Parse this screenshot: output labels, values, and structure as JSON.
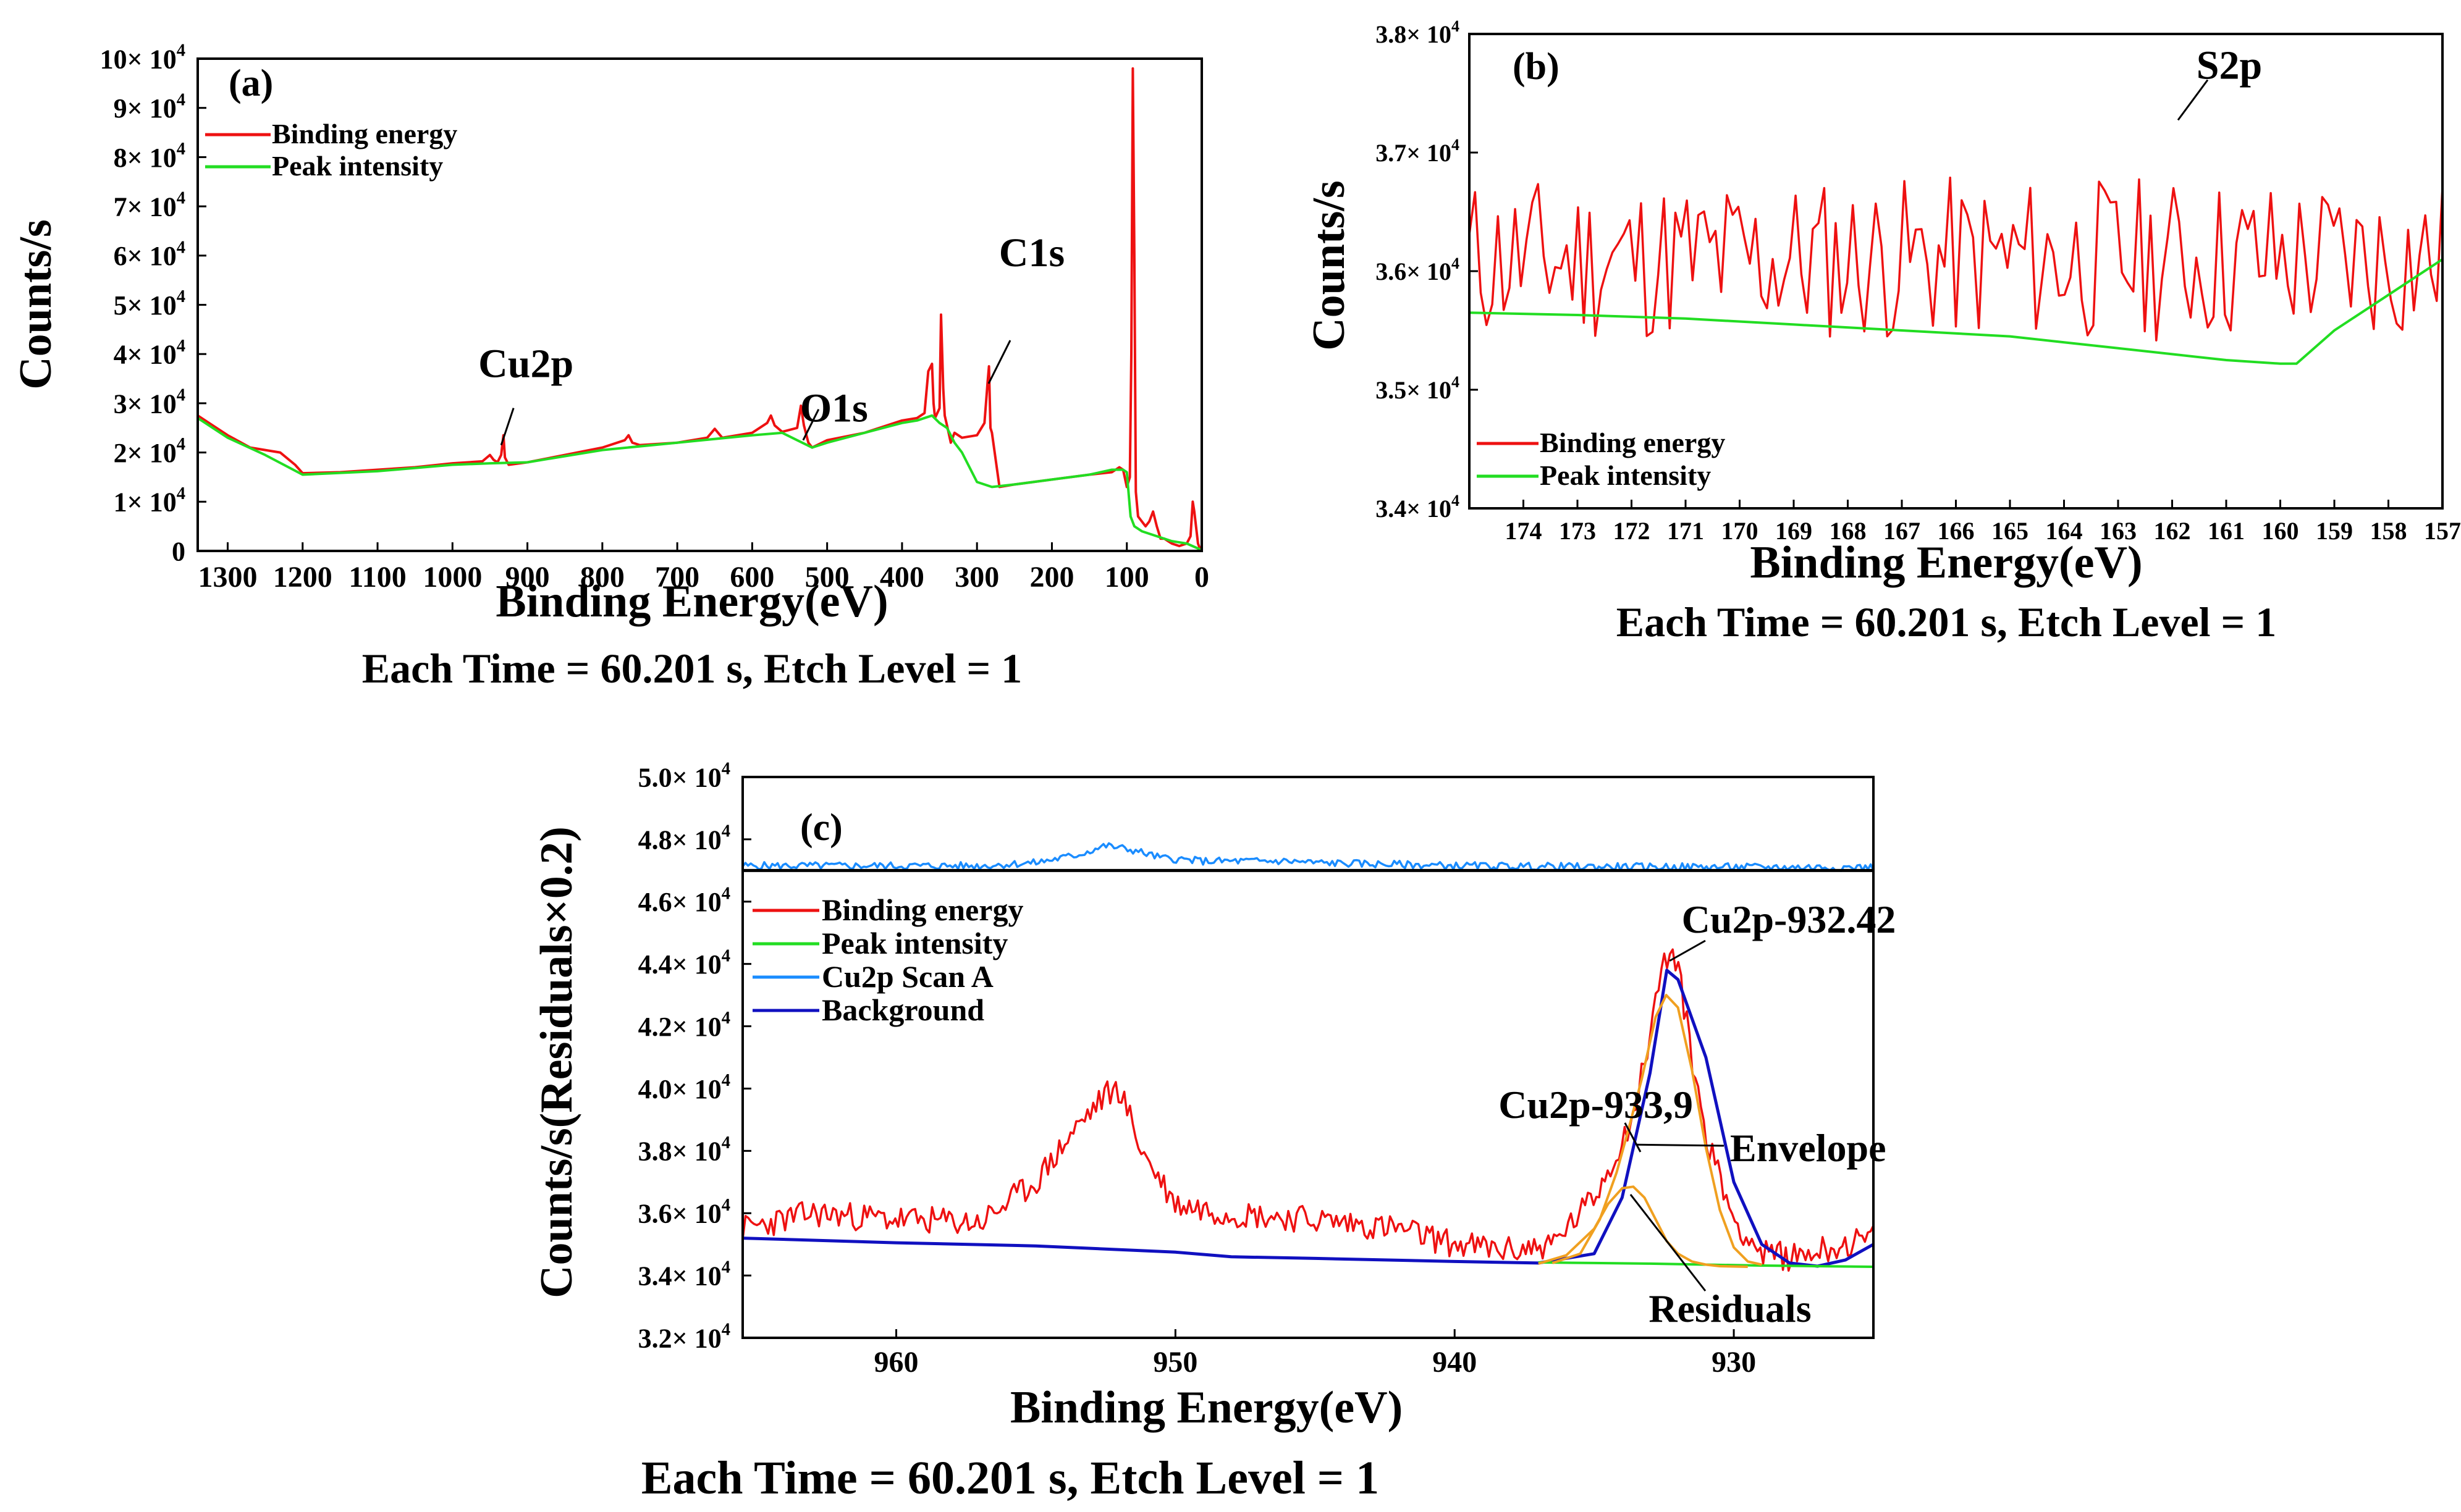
{
  "figure": {
    "colors": {
      "binding": "#ee1111",
      "peak": "#22dd22",
      "scan": "#1a8cff",
      "background": "#1010c0",
      "component": "#f0a020",
      "axis": "#000000"
    }
  },
  "chart_data": [
    {
      "id": "a",
      "type": "line",
      "panel_label": "(a)",
      "xlabel": "Binding Energy(eV)",
      "ylabel": "Counts/s",
      "caption": "Each Time = 60.201 s, Etch Level = 1",
      "xlim": [
        1340,
        0
      ],
      "ylim": [
        0,
        100000
      ],
      "x_ticks": [
        1300,
        1200,
        1100,
        1000,
        900,
        800,
        700,
        600,
        500,
        400,
        300,
        200,
        100,
        0
      ],
      "x_tick_labels": [
        "1300",
        "1200",
        "1100",
        "1000",
        "900",
        "800",
        "700",
        "600",
        "500",
        "400",
        "300",
        "200",
        "100",
        "0"
      ],
      "y_ticks": [
        0,
        10000,
        20000,
        30000,
        40000,
        50000,
        60000,
        70000,
        80000,
        90000,
        100000
      ],
      "y_tick_labels": [
        {
          "m": "0",
          "e": ""
        },
        {
          "m": "1× 10",
          "e": "4"
        },
        {
          "m": "2× 10",
          "e": "4"
        },
        {
          "m": "3× 10",
          "e": "4"
        },
        {
          "m": "4× 10",
          "e": "4"
        },
        {
          "m": "5× 10",
          "e": "4"
        },
        {
          "m": "6× 10",
          "e": "4"
        },
        {
          "m": "7× 10",
          "e": "4"
        },
        {
          "m": "8× 10",
          "e": "4"
        },
        {
          "m": "9× 10",
          "e": "4"
        },
        {
          "m": "10× 10",
          "e": "4"
        }
      ],
      "legend": {
        "position": "top-left",
        "entries": [
          "Binding energy",
          "Peak intensity"
        ]
      },
      "series": [
        {
          "name": "Binding energy",
          "color": "#ee1111",
          "x": [
            1340,
            1320,
            1300,
            1270,
            1250,
            1230,
            1210,
            1200,
            1150,
            1100,
            1050,
            1000,
            960,
            950,
            945,
            940,
            935,
            932,
            930,
            925,
            900,
            850,
            800,
            770,
            765,
            760,
            750,
            700,
            660,
            650,
            640,
            600,
            580,
            575,
            570,
            560,
            540,
            535,
            531,
            525,
            520,
            500,
            450,
            400,
            380,
            370,
            365,
            360,
            358,
            356,
            350,
            348,
            345,
            343,
            340,
            335,
            330,
            320,
            300,
            290,
            286,
            284,
            282,
            280,
            270,
            250,
            200,
            150,
            120,
            110,
            105,
            100,
            96,
            94,
            92,
            90,
            88,
            85,
            80,
            75,
            70,
            65,
            60,
            55,
            50,
            45,
            40,
            30,
            20,
            15,
            12,
            10,
            5,
            2
          ],
          "y": [
            27500,
            25500,
            23500,
            21000,
            20500,
            20000,
            17500,
            15800,
            16000,
            16500,
            17000,
            17800,
            18200,
            19500,
            18500,
            18000,
            19500,
            23500,
            19000,
            17500,
            18000,
            19500,
            21000,
            22500,
            23500,
            22000,
            21500,
            22000,
            23000,
            24800,
            23000,
            24000,
            26000,
            27500,
            25500,
            24200,
            25000,
            29500,
            25500,
            22000,
            21000,
            22500,
            24000,
            26500,
            27000,
            28000,
            36500,
            38000,
            30000,
            27000,
            29000,
            48000,
            33000,
            27500,
            25500,
            22000,
            24000,
            23000,
            23500,
            26000,
            34000,
            37500,
            25000,
            24000,
            13000,
            13500,
            14500,
            15500,
            16000,
            17000,
            16500,
            13000,
            15000,
            40000,
            98000,
            60000,
            12000,
            7000,
            6000,
            5000,
            6000,
            8000,
            5000,
            2500,
            2500,
            2000,
            1500,
            1000,
            1500,
            3000,
            10000,
            8000,
            1500,
            300
          ]
        },
        {
          "name": "Peak intensity",
          "color": "#22dd22",
          "x": [
            1340,
            1300,
            1250,
            1200,
            1100,
            1000,
            950,
            900,
            800,
            700,
            600,
            560,
            540,
            520,
            500,
            400,
            380,
            360,
            350,
            340,
            330,
            320,
            300,
            280,
            250,
            200,
            150,
            120,
            105,
            100,
            95,
            90,
            80,
            60,
            40,
            20,
            5,
            2
          ],
          "y": [
            27000,
            23000,
            19500,
            15500,
            16200,
            17500,
            17800,
            18000,
            20500,
            22000,
            23500,
            24000,
            22500,
            21000,
            22000,
            26000,
            26500,
            27500,
            26000,
            25000,
            22000,
            20000,
            14000,
            13000,
            13500,
            14500,
            15500,
            16500,
            16500,
            16000,
            7000,
            5000,
            4000,
            3000,
            2000,
            1500,
            500,
            300
          ]
        }
      ],
      "annotations": [
        {
          "text": "Cu2p",
          "x": 935,
          "y": 21500
        },
        {
          "text": "O1s",
          "x": 532,
          "y": 22500
        },
        {
          "text": "C1s",
          "x": 284.5,
          "y": 34000
        }
      ]
    },
    {
      "id": "b",
      "type": "line",
      "panel_label": "(b)",
      "xlabel": "Binding Energy(eV)",
      "ylabel": "Counts/s",
      "caption": "Each Time = 60.201 s, Etch Level = 1",
      "xlim": [
        175,
        157
      ],
      "ylim": [
        34000,
        38000
      ],
      "x_ticks": [
        174,
        173,
        172,
        171,
        170,
        169,
        168,
        167,
        166,
        165,
        164,
        163,
        162,
        161,
        160,
        159,
        158,
        157
      ],
      "x_tick_labels": [
        "174",
        "173",
        "172",
        "171",
        "170",
        "169",
        "168",
        "167",
        "166",
        "165",
        "164",
        "163",
        "162",
        "161",
        "160",
        "159",
        "158",
        "157"
      ],
      "y_ticks": [
        34000,
        35000,
        36000,
        37000,
        38000
      ],
      "y_tick_labels": [
        {
          "m": "3.4× 10",
          "e": "4"
        },
        {
          "m": "3.5× 10",
          "e": "4"
        },
        {
          "m": "3.6× 10",
          "e": "4"
        },
        {
          "m": "3.7× 10",
          "e": "4"
        },
        {
          "m": "3.8× 10",
          "e": "4"
        }
      ],
      "legend": {
        "position": "bottom-left",
        "entries": [
          "Binding energy",
          "Peak intensity"
        ]
      },
      "noise": {
        "series": "Binding energy",
        "color": "#ee1111",
        "from": 175,
        "to": 157,
        "points": 170,
        "amplitude": 700,
        "seed": 11
      },
      "series": [
        {
          "name": "Peak intensity",
          "color": "#22dd22",
          "x": [
            175,
            173,
            171,
            169,
            167,
            165,
            164,
            163,
            162,
            161,
            160,
            159.7,
            159,
            158,
            157
          ],
          "y": [
            35650,
            35630,
            35600,
            35550,
            35500,
            35450,
            35400,
            35350,
            35300,
            35250,
            35220,
            35220,
            35500,
            35800,
            36100
          ]
        },
        {
          "name": "Binding energy",
          "color": "#ee1111",
          "x": [],
          "y": []
        }
      ],
      "annotations": [
        {
          "text": "S2p",
          "x": 161.8,
          "y": 37300
        }
      ]
    },
    {
      "id": "c",
      "type": "line",
      "panel_label": "(c)",
      "xlabel": "Binding Energy(eV)",
      "ylabel": "Counts/s(Residuals×0.2)",
      "caption": "Each Time = 60.201 s, Etch Level = 1",
      "xlim": [
        965.5,
        925
      ],
      "ylim": [
        32000,
        50000
      ],
      "x_ticks": [
        960,
        950,
        940,
        930
      ],
      "x_tick_labels": [
        "960",
        "950",
        "940",
        "930"
      ],
      "y_ticks": [
        32000,
        34000,
        36000,
        38000,
        40000,
        42000,
        44000,
        46000,
        48000,
        50000
      ],
      "y_tick_labels": [
        {
          "m": "3.2× 10",
          "e": "4"
        },
        {
          "m": "3.4× 10",
          "e": "4"
        },
        {
          "m": "3.6× 10",
          "e": "4"
        },
        {
          "m": "3.8× 10",
          "e": "4"
        },
        {
          "m": "4.0× 10",
          "e": "4"
        },
        {
          "m": "4.2× 10",
          "e": "4"
        },
        {
          "m": "4.4× 10",
          "e": "4"
        },
        {
          "m": "4.6× 10",
          "e": "4"
        },
        {
          "m": "4.8× 10",
          "e": "4"
        },
        {
          "m": "5.0× 10",
          "e": "4"
        }
      ],
      "residual_baseline": 47000,
      "legend": {
        "position": "top-left",
        "entries": [
          "Binding energy",
          "Peak intensity",
          "Cu2p Scan A",
          "Background"
        ]
      },
      "series": [
        {
          "name": "Background",
          "color": "#1010c0",
          "x": [
            965.5,
            960,
            955,
            950,
            948,
            945,
            940,
            937,
            935,
            934,
            933,
            932.4,
            932,
            931,
            930,
            929,
            928,
            927,
            926,
            925
          ],
          "y": [
            35200,
            35050,
            34950,
            34750,
            34600,
            34550,
            34450,
            34400,
            34700,
            36500,
            40500,
            43800,
            43500,
            41000,
            37000,
            35000,
            34400,
            34300,
            34500,
            35000
          ]
        },
        {
          "name": "Peak intensity",
          "color": "#22dd22",
          "x": [
            937,
            935,
            933,
            931,
            929,
            927,
            925
          ],
          "y": [
            34420,
            34400,
            34380,
            34350,
            34320,
            34300,
            34280
          ]
        },
        {
          "name": "Envelope",
          "color": "#f0a020",
          "x": [
            936.5,
            935.5,
            934.8,
            934.2,
            933.8,
            933.3,
            932.8,
            932.42,
            932,
            931.5,
            931,
            930.5,
            930,
            929.5,
            929
          ],
          "y": [
            34400,
            34700,
            35800,
            37300,
            38600,
            40300,
            42300,
            43000,
            42600,
            40600,
            38100,
            36100,
            34900,
            34450,
            34350
          ]
        },
        {
          "name": "Residuals",
          "color": "#f0a020",
          "x": [
            937,
            936,
            935,
            934.5,
            934,
            933.6,
            933.2,
            932.8,
            932.4,
            932,
            931.5,
            931,
            930.5,
            930,
            929.5
          ],
          "y": [
            34380,
            34650,
            35500,
            36300,
            36800,
            36850,
            36500,
            35800,
            35100,
            34700,
            34450,
            34350,
            34300,
            34290,
            34280
          ]
        },
        {
          "name": "Binding energy",
          "color": "#ee1111",
          "x": [],
          "y": []
        },
        {
          "name": "Cu2p Scan A",
          "color": "#1a8cff",
          "x": [],
          "y": []
        }
      ],
      "noise": [
        {
          "series": "Binding energy",
          "color": "#ee1111",
          "from": 965.5,
          "to": 925,
          "points": 400,
          "amplitude": 450,
          "seed": 23,
          "trend_x": [
            965.5,
            963,
            960,
            957,
            955,
            953.5,
            952.5,
            952,
            951.2,
            950,
            948,
            945,
            942,
            940,
            938,
            936.5,
            935,
            934,
            933.5,
            933,
            932.6,
            932.3,
            932,
            931.5,
            931,
            930,
            929,
            928,
            927,
            926,
            925
          ],
          "trend_y": [
            35500,
            36000,
            35800,
            35700,
            37000,
            38800,
            39800,
            40000,
            38000,
            36300,
            36000,
            35800,
            35500,
            35000,
            34800,
            35000,
            36500,
            38300,
            39500,
            41800,
            43800,
            44400,
            43900,
            41000,
            38500,
            35800,
            34700,
            34600,
            34800,
            35000,
            35200
          ]
        },
        {
          "series": "Cu2p Scan A",
          "color": "#1a8cff",
          "from": 965.5,
          "to": 925,
          "points": 420,
          "amplitude": 120,
          "seed": 5,
          "trend_x": [
            965.5,
            957,
            955,
            953.5,
            952.5,
            951.5,
            950.5,
            949,
            946,
            945,
            940,
            935,
            925
          ],
          "trend_y": [
            47150,
            47150,
            47250,
            47500,
            47800,
            47650,
            47400,
            47300,
            47300,
            47250,
            47150,
            47120,
            47100
          ]
        }
      ],
      "annotations": [
        {
          "text": "Cu2p-932.42",
          "x": 932.3,
          "y": 44100
        },
        {
          "text": "Cu2p-933,9",
          "x": 933.9,
          "y": 38900
        },
        {
          "text": "Envelope",
          "x": 933.5,
          "y": 38200
        },
        {
          "text": "Residuals",
          "x": 933.7,
          "y": 36600
        }
      ]
    }
  ]
}
